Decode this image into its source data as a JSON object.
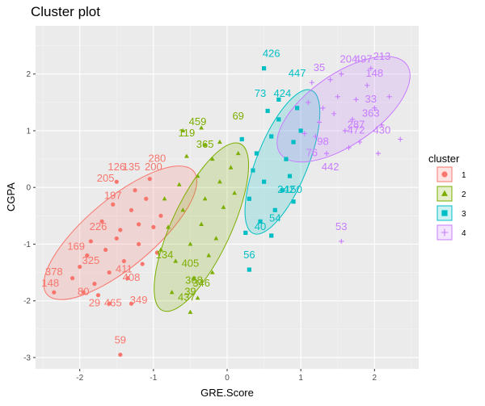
{
  "chart_data": {
    "type": "scatter",
    "title": "Cluster plot",
    "xlabel": "GRE.Score",
    "ylabel": "CGPA",
    "xlim": [
      -2.6,
      2.6
    ],
    "ylim": [
      -3.2,
      2.85
    ],
    "xticks": [
      -2,
      -1,
      0,
      1,
      2
    ],
    "yticks": [
      -3,
      -2,
      -1,
      0,
      1,
      2
    ],
    "grid": true,
    "legend": {
      "title": "cluster",
      "position": "right"
    },
    "series": [
      {
        "name": "1",
        "color": "#F8766D",
        "marker": "circle",
        "ellipse": {
          "cx": -1.45,
          "cy": -0.8,
          "rx": 1.3,
          "ry": 0.6,
          "angle": 40
        },
        "points": [
          {
            "x": -1.9,
            "y": -1.2
          },
          {
            "x": -1.7,
            "y": -0.6
          },
          {
            "x": -1.5,
            "y": -0.9
          },
          {
            "x": -1.3,
            "y": -0.4
          },
          {
            "x": -1.2,
            "y": -1.0
          },
          {
            "x": -1.1,
            "y": -0.2
          },
          {
            "x": -1.6,
            "y": -1.5
          },
          {
            "x": -1.8,
            "y": -1.7
          },
          {
            "x": -1.4,
            "y": -1.3
          },
          {
            "x": -1.0,
            "y": -0.7
          },
          {
            "x": -1.25,
            "y": -0.05
          },
          {
            "x": -1.55,
            "y": -0.3
          },
          {
            "x": -2.0,
            "y": -1.4
          },
          {
            "x": -1.75,
            "y": -1.9
          },
          {
            "x": -1.35,
            "y": -1.6
          },
          {
            "x": -0.95,
            "y": -1.15
          },
          {
            "x": -1.05,
            "y": 0.15
          },
          {
            "x": -1.45,
            "y": -0.75
          },
          {
            "x": -1.65,
            "y": -1.1
          },
          {
            "x": -2.1,
            "y": -1.6
          },
          {
            "x": -1.85,
            "y": -0.95
          },
          {
            "x": -1.15,
            "y": -1.35
          },
          {
            "x": -0.9,
            "y": -0.5
          },
          {
            "x": -1.3,
            "y": -2.05
          },
          {
            "x": -1.6,
            "y": -2.05
          },
          {
            "x": -1.95,
            "y": -1.85
          },
          {
            "x": -1.5,
            "y": 0.1
          },
          {
            "x": -1.2,
            "y": -0.65
          },
          {
            "x": -2.35,
            "y": -1.85
          },
          {
            "x": -1.45,
            "y": -2.95
          }
        ],
        "labels": [
          {
            "text": "280",
            "x": -0.95,
            "y": 0.45
          },
          {
            "text": "126",
            "x": -1.5,
            "y": 0.3
          },
          {
            "text": "135",
            "x": -1.3,
            "y": 0.3
          },
          {
            "text": "200",
            "x": -1.0,
            "y": 0.3
          },
          {
            "text": "205",
            "x": -1.65,
            "y": 0.1
          },
          {
            "text": "226",
            "x": -1.75,
            "y": -0.75
          },
          {
            "text": "169",
            "x": -2.05,
            "y": -1.1
          },
          {
            "text": "378",
            "x": -2.35,
            "y": -1.55
          },
          {
            "text": "148",
            "x": -2.4,
            "y": -1.75
          },
          {
            "text": "80",
            "x": -1.95,
            "y": -1.9
          },
          {
            "text": "29",
            "x": -1.8,
            "y": -2.1
          },
          {
            "text": "465",
            "x": -1.55,
            "y": -2.1
          },
          {
            "text": "349",
            "x": -1.2,
            "y": -2.05
          },
          {
            "text": "408",
            "x": -1.3,
            "y": -1.65
          },
          {
            "text": "411",
            "x": -1.4,
            "y": -1.5
          },
          {
            "text": "59",
            "x": -1.45,
            "y": -2.75
          },
          {
            "text": "197",
            "x": -1.55,
            "y": -0.2
          },
          {
            "text": "325",
            "x": -1.85,
            "y": -1.35
          }
        ]
      },
      {
        "name": "2",
        "color": "#7CAE00",
        "marker": "triangle",
        "ellipse": {
          "cx": -0.35,
          "cy": -0.7,
          "rx": 1.25,
          "ry": 0.52,
          "angle": 65
        },
        "points": [
          {
            "x": -0.6,
            "y": -0.4
          },
          {
            "x": -0.4,
            "y": 0.2
          },
          {
            "x": -0.2,
            "y": 0.5
          },
          {
            "x": -0.5,
            "y": -1.0
          },
          {
            "x": -0.3,
            "y": -0.2
          },
          {
            "x": -0.1,
            "y": 0.1
          },
          {
            "x": -0.7,
            "y": -1.3
          },
          {
            "x": -0.45,
            "y": -1.6
          },
          {
            "x": -0.25,
            "y": -1.2
          },
          {
            "x": 0.05,
            "y": 0.35
          },
          {
            "x": -0.8,
            "y": -0.7
          },
          {
            "x": -0.55,
            "y": 0.55
          },
          {
            "x": -0.35,
            "y": -0.65
          },
          {
            "x": -0.15,
            "y": -0.9
          },
          {
            "x": -0.65,
            "y": 0.05
          },
          {
            "x": -0.05,
            "y": -0.35
          },
          {
            "x": -0.9,
            "y": -1.1
          },
          {
            "x": -0.75,
            "y": -1.85
          },
          {
            "x": -0.4,
            "y": -1.95
          },
          {
            "x": -0.3,
            "y": 0.75
          },
          {
            "x": -0.1,
            "y": 0.8
          },
          {
            "x": 0.1,
            "y": -0.1
          },
          {
            "x": -0.85,
            "y": -0.2
          },
          {
            "x": -0.5,
            "y": -2.2
          },
          {
            "x": -0.2,
            "y": -1.5
          },
          {
            "x": 0.15,
            "y": 0.6
          },
          {
            "x": -0.6,
            "y": 1.0
          },
          {
            "x": -0.35,
            "y": 1.05
          }
        ],
        "labels": [
          {
            "text": "69",
            "x": 0.15,
            "y": 1.2
          },
          {
            "text": "459",
            "x": -0.4,
            "y": 1.1
          },
          {
            "text": "119",
            "x": -0.55,
            "y": 0.9
          },
          {
            "text": "365",
            "x": -0.3,
            "y": 0.7
          },
          {
            "text": "405",
            "x": -0.5,
            "y": -1.4
          },
          {
            "text": "368",
            "x": -0.45,
            "y": -1.7
          },
          {
            "text": "437",
            "x": -0.55,
            "y": -2.0
          },
          {
            "text": "346",
            "x": -0.35,
            "y": -1.75
          },
          {
            "text": "39",
            "x": -0.5,
            "y": -1.9
          },
          {
            "text": "134",
            "x": -0.85,
            "y": -1.25
          }
        ]
      },
      {
        "name": "3",
        "color": "#00BFC4",
        "marker": "square",
        "ellipse": {
          "cx": 0.75,
          "cy": 0.45,
          "rx": 1.05,
          "ry": 0.45,
          "angle": 68
        },
        "points": [
          {
            "x": 0.4,
            "y": 0.6
          },
          {
            "x": 0.6,
            "y": 0.9
          },
          {
            "x": 0.8,
            "y": 0.5
          },
          {
            "x": 0.5,
            "y": 0.1
          },
          {
            "x": 0.7,
            "y": 1.2
          },
          {
            "x": 0.9,
            "y": 0.8
          },
          {
            "x": 0.3,
            "y": -0.2
          },
          {
            "x": 0.45,
            "y": -0.6
          },
          {
            "x": 0.65,
            "y": -0.4
          },
          {
            "x": 0.85,
            "y": 0.2
          },
          {
            "x": 1.0,
            "y": 1.0
          },
          {
            "x": 0.55,
            "y": 1.35
          },
          {
            "x": 0.75,
            "y": -0.05
          },
          {
            "x": 0.35,
            "y": 0.3
          },
          {
            "x": 0.95,
            "y": 1.4
          },
          {
            "x": 0.25,
            "y": -0.8
          },
          {
            "x": 0.6,
            "y": -0.85
          },
          {
            "x": 0.9,
            "y": -0.25
          },
          {
            "x": 0.5,
            "y": 2.1
          },
          {
            "x": 0.3,
            "y": -1.45
          },
          {
            "x": 0.2,
            "y": 0.85
          },
          {
            "x": 0.7,
            "y": 1.55
          }
        ],
        "labels": [
          {
            "text": "426",
            "x": 0.6,
            "y": 2.3
          },
          {
            "text": "447",
            "x": 0.95,
            "y": 1.95
          },
          {
            "text": "424",
            "x": 0.75,
            "y": 1.6
          },
          {
            "text": "73",
            "x": 0.45,
            "y": 1.6
          },
          {
            "text": "54",
            "x": 0.65,
            "y": -0.6
          },
          {
            "text": "40",
            "x": 0.45,
            "y": -0.75
          },
          {
            "text": "56",
            "x": 0.3,
            "y": -1.25
          },
          {
            "text": "150",
            "x": 0.9,
            "y": -0.1
          },
          {
            "text": "242",
            "x": 0.8,
            "y": -0.1
          }
        ]
      },
      {
        "name": "4",
        "color": "#C77CFF",
        "marker": "plus",
        "ellipse": {
          "cx": 1.58,
          "cy": 1.38,
          "rx": 1.05,
          "ry": 0.62,
          "angle": 35
        },
        "points": [
          {
            "x": 1.3,
            "y": 1.4
          },
          {
            "x": 1.5,
            "y": 1.6
          },
          {
            "x": 1.7,
            "y": 1.2
          },
          {
            "x": 1.9,
            "y": 1.8
          },
          {
            "x": 1.2,
            "y": 0.9
          },
          {
            "x": 1.6,
            "y": 1.0
          },
          {
            "x": 2.0,
            "y": 1.4
          },
          {
            "x": 1.1,
            "y": 1.5
          },
          {
            "x": 1.4,
            "y": 1.9
          },
          {
            "x": 1.8,
            "y": 0.8
          },
          {
            "x": 2.1,
            "y": 1.1
          },
          {
            "x": 1.35,
            "y": 0.6
          },
          {
            "x": 1.55,
            "y": 2.0
          },
          {
            "x": 1.75,
            "y": 1.55
          },
          {
            "x": 1.25,
            "y": 1.15
          },
          {
            "x": 1.95,
            "y": 2.1
          },
          {
            "x": 2.2,
            "y": 1.6
          },
          {
            "x": 1.05,
            "y": 0.95
          },
          {
            "x": 1.65,
            "y": 0.7
          },
          {
            "x": 1.45,
            "y": 1.3
          },
          {
            "x": 2.05,
            "y": 0.6
          },
          {
            "x": 1.55,
            "y": -0.95
          },
          {
            "x": 2.35,
            "y": 0.85
          },
          {
            "x": 1.15,
            "y": 1.85
          }
        ],
        "labels": [
          {
            "text": "204",
            "x": 1.65,
            "y": 2.2
          },
          {
            "text": "497",
            "x": 1.85,
            "y": 2.2
          },
          {
            "text": "213",
            "x": 2.1,
            "y": 2.25
          },
          {
            "text": "35",
            "x": 1.25,
            "y": 2.05
          },
          {
            "text": "148",
            "x": 2.0,
            "y": 1.95
          },
          {
            "text": "287",
            "x": 1.75,
            "y": 1.05
          },
          {
            "text": "363",
            "x": 1.95,
            "y": 1.25
          },
          {
            "text": "430",
            "x": 2.1,
            "y": 0.95
          },
          {
            "text": "442",
            "x": 1.4,
            "y": 0.3
          },
          {
            "text": "53",
            "x": 1.55,
            "y": -0.75
          },
          {
            "text": "76",
            "x": 1.15,
            "y": 0.55
          },
          {
            "text": "98",
            "x": 1.3,
            "y": 0.75
          },
          {
            "text": "472",
            "x": 1.75,
            "y": 0.95
          },
          {
            "text": "33",
            "x": 1.95,
            "y": 1.5
          }
        ]
      }
    ]
  }
}
